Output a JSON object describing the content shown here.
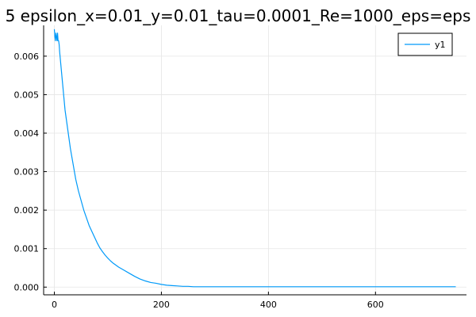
{
  "chart_data": {
    "type": "line",
    "title": "5 epsilon_x=0.01_y=0.01_tau=0.0001_Re=1000_eps=eps",
    "xlabel": "",
    "ylabel": "",
    "xlim": [
      -20,
      770
    ],
    "ylim": [
      -0.0002,
      0.0068
    ],
    "xticks": [
      0,
      200,
      400,
      600
    ],
    "xtick_labels": [
      "0",
      "200",
      "400",
      "600"
    ],
    "yticks": [
      0.0,
      0.001,
      0.002,
      0.003,
      0.004,
      0.005,
      0.006
    ],
    "ytick_labels": [
      "0.000",
      "0.001",
      "0.002",
      "0.003",
      "0.004",
      "0.005",
      "0.006"
    ],
    "grid": true,
    "legend": {
      "position": "top-right",
      "entries": [
        "y1"
      ]
    },
    "series": [
      {
        "name": "y1",
        "color": "#009af9",
        "x": [
          0,
          1,
          2,
          3,
          4,
          5,
          6,
          7,
          8,
          9,
          10,
          12,
          14,
          16,
          18,
          20,
          25,
          30,
          35,
          40,
          45,
          50,
          55,
          60,
          65,
          70,
          75,
          80,
          85,
          90,
          95,
          100,
          105,
          110,
          120,
          130,
          140,
          150,
          160,
          170,
          180,
          190,
          200,
          210,
          220,
          230,
          240,
          250,
          260,
          280,
          300,
          350,
          400,
          450,
          500,
          550,
          600,
          650,
          700,
          750
        ],
        "y": [
          0.0067,
          0.0065,
          0.0064,
          0.0066,
          0.0065,
          0.0064,
          0.0066,
          0.0064,
          0.0064,
          0.0063,
          0.0061,
          0.0058,
          0.0055,
          0.0052,
          0.0049,
          0.0046,
          0.0041,
          0.0036,
          0.0032,
          0.0028,
          0.0025,
          0.00225,
          0.002,
          0.0018,
          0.0016,
          0.00145,
          0.0013,
          0.00115,
          0.00102,
          0.00092,
          0.00083,
          0.00075,
          0.00068,
          0.00062,
          0.00052,
          0.00044,
          0.00036,
          0.00028,
          0.00021,
          0.00016,
          0.00012,
          0.0001,
          7e-05,
          5e-05,
          4e-05,
          3e-05,
          2e-05,
          2e-05,
          1e-05,
          1e-05,
          1e-05,
          1e-05,
          1e-05,
          1e-05,
          1e-05,
          1e-05,
          1e-05,
          1e-05,
          1e-05,
          1e-05
        ]
      }
    ]
  }
}
